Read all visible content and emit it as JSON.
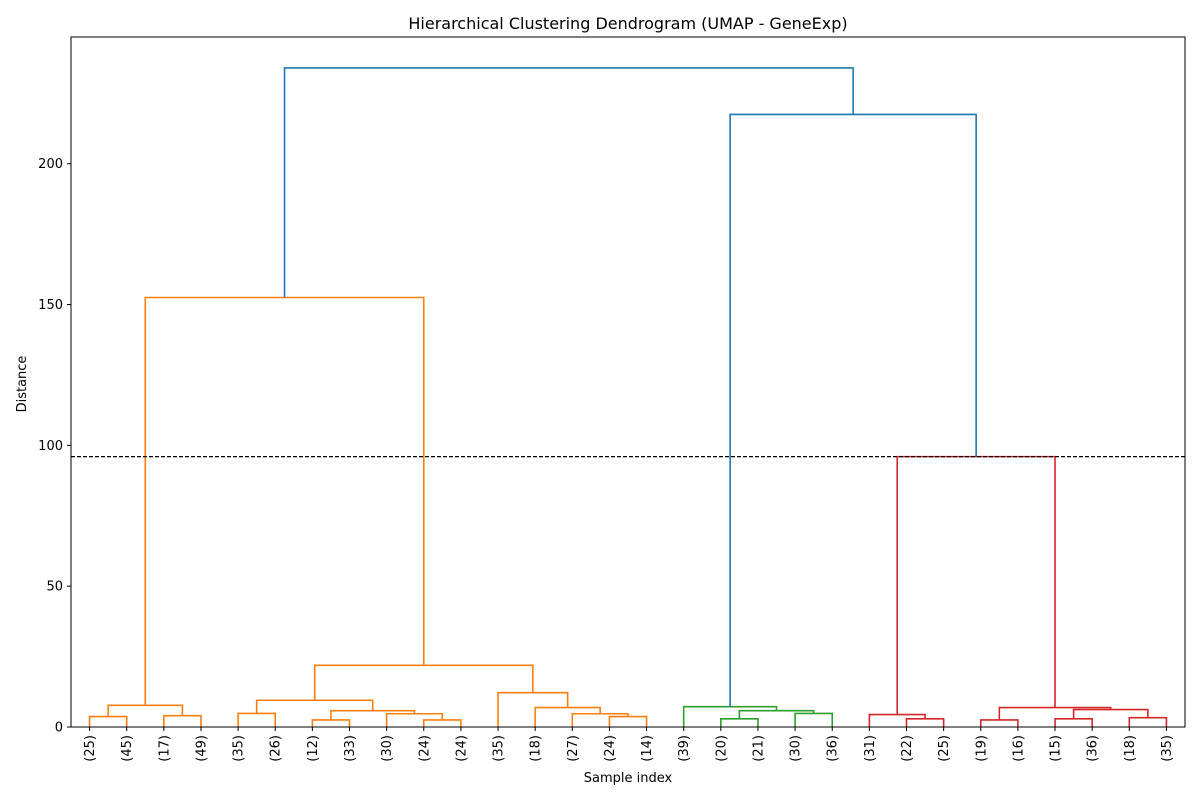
{
  "chart_data": {
    "type": "dendrogram",
    "title": "Hierarchical Clustering Dendrogram (UMAP - GeneExp)",
    "xlabel": "Sample index",
    "ylabel": "Distance",
    "ylim": [
      0,
      245
    ],
    "yticks": [
      0,
      50,
      100,
      150,
      200
    ],
    "leaf_labels": [
      "(25)",
      "(45)",
      "(17)",
      "(49)",
      "(35)",
      "(26)",
      "(12)",
      "(33)",
      "(30)",
      "(24)",
      "(24)",
      "(35)",
      "(18)",
      "(27)",
      "(24)",
      "(14)",
      "(39)",
      "(20)",
      "(21)",
      "(30)",
      "(36)",
      "(31)",
      "(22)",
      "(25)",
      "(19)",
      "(16)",
      "(15)",
      "(36)",
      "(18)",
      "(35)"
    ],
    "cut_threshold": 96,
    "colors": {
      "orange": "#ff7f0e",
      "green": "#2ca02c",
      "red": "#d62728",
      "blue": "#1f77b4",
      "threshold": "#000000"
    },
    "links": [
      {
        "x": [
          0,
          0,
          1,
          1
        ],
        "y": [
          0,
          3.7,
          3.7,
          0
        ],
        "color": "orange"
      },
      {
        "x": [
          2,
          2,
          3,
          3
        ],
        "y": [
          0,
          4,
          4,
          0
        ],
        "color": "orange"
      },
      {
        "x": [
          0.5,
          0.5,
          2.5,
          2.5
        ],
        "y": [
          3.7,
          7.7,
          7.7,
          4
        ],
        "color": "orange"
      },
      {
        "x": [
          4,
          4,
          5,
          5
        ],
        "y": [
          0,
          4.8,
          4.8,
          0
        ],
        "color": "orange"
      },
      {
        "x": [
          6,
          6,
          7,
          7
        ],
        "y": [
          0,
          2.5,
          2.5,
          0
        ],
        "color": "orange"
      },
      {
        "x": [
          9,
          9,
          10,
          10
        ],
        "y": [
          0,
          2.5,
          2.5,
          0
        ],
        "color": "orange"
      },
      {
        "x": [
          8,
          8,
          9.5,
          9.5
        ],
        "y": [
          0,
          4.7,
          4.7,
          2.5
        ],
        "color": "orange"
      },
      {
        "x": [
          6.5,
          6.5,
          8.75,
          8.75
        ],
        "y": [
          2.5,
          5.8,
          5.8,
          4.7
        ],
        "color": "orange"
      },
      {
        "x": [
          4.5,
          4.5,
          7.625,
          7.625
        ],
        "y": [
          4.8,
          9.5,
          9.5,
          5.8
        ],
        "color": "orange"
      },
      {
        "x": [
          14,
          14,
          15,
          15
        ],
        "y": [
          0,
          3.7,
          3.7,
          0
        ],
        "color": "orange"
      },
      {
        "x": [
          13,
          13,
          14.5,
          14.5
        ],
        "y": [
          0,
          4.7,
          4.7,
          3.7
        ],
        "color": "orange"
      },
      {
        "x": [
          12,
          12,
          13.75,
          13.75
        ],
        "y": [
          0,
          6.9,
          6.9,
          4.7
        ],
        "color": "orange"
      },
      {
        "x": [
          11,
          11,
          12.875,
          12.875
        ],
        "y": [
          0,
          12.2,
          12.2,
          6.9
        ],
        "color": "orange"
      },
      {
        "x": [
          6.0625,
          6.0625,
          11.9375,
          11.9375
        ],
        "y": [
          9.5,
          21.9,
          21.9,
          12.2
        ],
        "color": "orange"
      },
      {
        "x": [
          1.5,
          1.5,
          9,
          9
        ],
        "y": [
          7.7,
          152.5,
          152.5,
          21.9
        ],
        "color": "orange"
      },
      {
        "x": [
          17,
          17,
          18,
          18
        ],
        "y": [
          0,
          2.9,
          2.9,
          0
        ],
        "color": "green"
      },
      {
        "x": [
          19,
          19,
          20,
          20
        ],
        "y": [
          0,
          4.8,
          4.8,
          0
        ],
        "color": "green"
      },
      {
        "x": [
          17.5,
          17.5,
          19.5,
          19.5
        ],
        "y": [
          2.9,
          5.8,
          5.8,
          4.8
        ],
        "color": "green"
      },
      {
        "x": [
          16,
          16,
          18.5,
          18.5
        ],
        "y": [
          0,
          7.2,
          7.2,
          5.8
        ],
        "color": "green"
      },
      {
        "x": [
          22,
          22,
          23,
          23
        ],
        "y": [
          0,
          2.9,
          2.9,
          0
        ],
        "color": "red"
      },
      {
        "x": [
          21,
          21,
          22.5,
          22.5
        ],
        "y": [
          0,
          4.4,
          4.4,
          2.9
        ],
        "color": "red"
      },
      {
        "x": [
          24,
          24,
          25,
          25
        ],
        "y": [
          0,
          2.5,
          2.5,
          0
        ],
        "color": "red"
      },
      {
        "x": [
          26,
          26,
          27,
          27
        ],
        "y": [
          0,
          2.9,
          2.9,
          0
        ],
        "color": "red"
      },
      {
        "x": [
          28,
          28,
          29,
          29
        ],
        "y": [
          0,
          3.3,
          3.3,
          0
        ],
        "color": "red"
      },
      {
        "x": [
          26.5,
          26.5,
          28.5,
          28.5
        ],
        "y": [
          2.9,
          6.2,
          6.2,
          3.3
        ],
        "color": "red"
      },
      {
        "x": [
          24.5,
          24.5,
          27.5,
          27.5
        ],
        "y": [
          2.5,
          6.9,
          6.9,
          6.2
        ],
        "color": "red"
      },
      {
        "x": [
          21.75,
          21.75,
          26,
          26
        ],
        "y": [
          4.4,
          96,
          96,
          6.9
        ],
        "color": "red"
      },
      {
        "x": [
          17.25,
          17.25,
          23.875,
          23.875
        ],
        "y": [
          7.2,
          217.5,
          217.5,
          96
        ],
        "color": "blue"
      },
      {
        "x": [
          5.25,
          5.25,
          20.5625,
          20.5625
        ],
        "y": [
          152.5,
          234,
          234,
          217.5
        ],
        "color": "blue"
      }
    ]
  }
}
